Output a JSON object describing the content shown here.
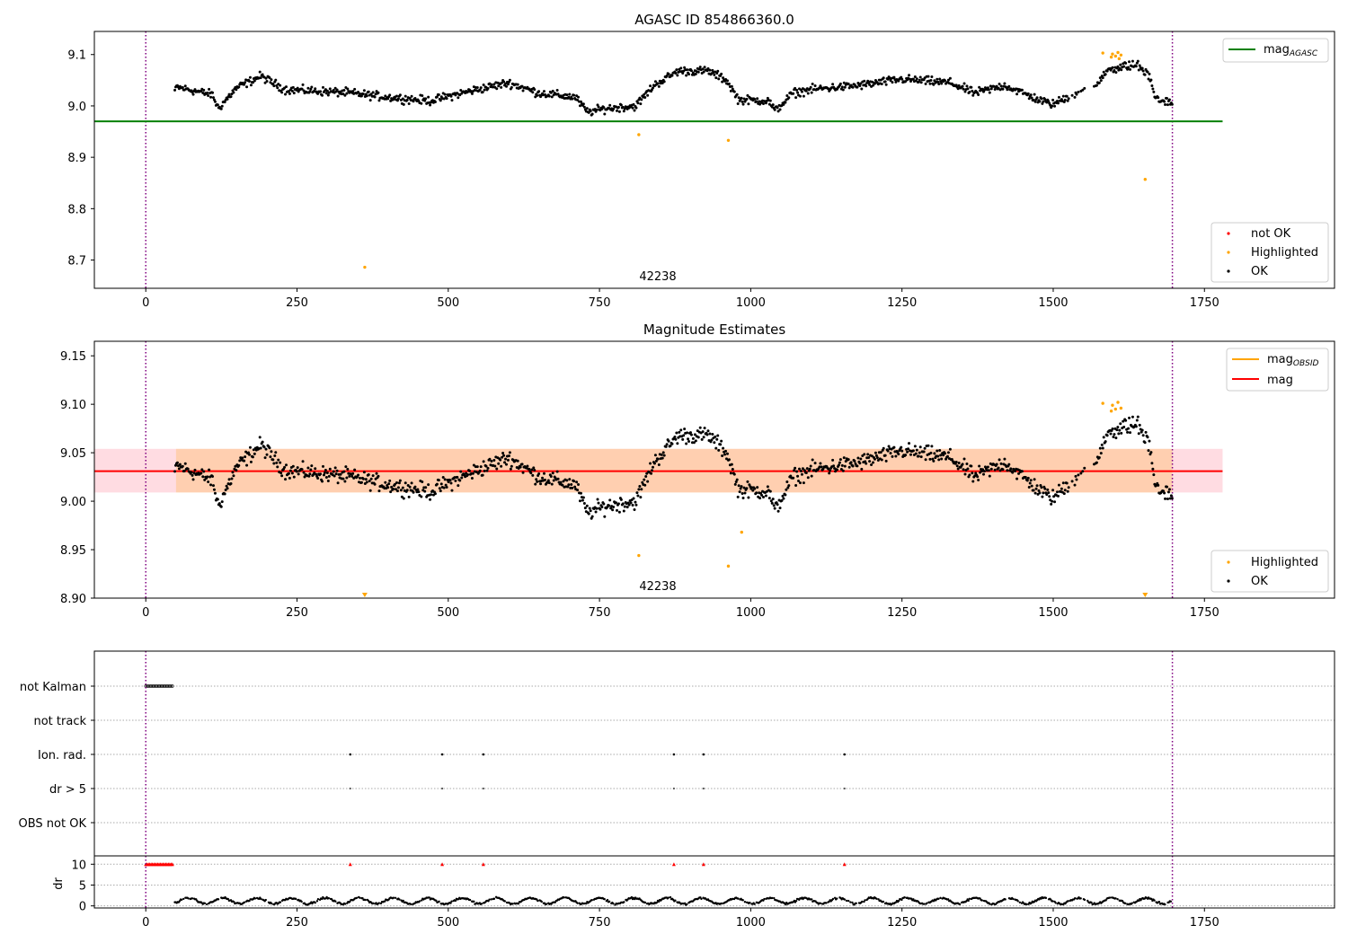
{
  "chart_data": [
    {
      "type": "scatter",
      "title": "AGASC ID 854866360.0",
      "xlim": [
        -85,
        1965
      ],
      "ylim": [
        8.645,
        9.145
      ],
      "xticks": [
        0,
        250,
        500,
        750,
        1000,
        1250,
        1500,
        1750
      ],
      "yticks": [
        8.7,
        8.8,
        8.9,
        9.0,
        9.1
      ],
      "ytick_labels": [
        "8.7",
        "8.8",
        "8.9",
        "9.0",
        "9.1"
      ],
      "xtick_labels": [
        "0",
        "250",
        "500",
        "750",
        "1000",
        "1250",
        "1500",
        "1750"
      ],
      "vlines": [
        0,
        1697
      ],
      "obsid_label": {
        "text": "42238",
        "x": 848
      },
      "hlines": [
        {
          "name": "mag_AGASC",
          "y": 8.97,
          "x0": -85,
          "x1": 1780,
          "color": "#008000"
        }
      ],
      "legend_lines": [
        {
          "label": "mag",
          "sub": "AGASC",
          "color": "#008000"
        }
      ],
      "legend_points": [
        {
          "label": "not OK",
          "color": "#ff0000"
        },
        {
          "label": "Highlighted",
          "color": "#ffa500"
        },
        {
          "label": "OK",
          "color": "#000000"
        }
      ],
      "highlighted": [
        [
          362,
          8.686
        ],
        [
          815,
          8.944
        ],
        [
          963,
          8.933
        ],
        [
          1652,
          8.857
        ],
        [
          1582,
          9.103
        ],
        [
          1598,
          9.101
        ],
        [
          1603,
          9.097
        ],
        [
          1607,
          9.104
        ],
        [
          1612,
          9.099
        ],
        [
          1609,
          9.092
        ],
        [
          1596,
          9.095
        ]
      ]
    },
    {
      "type": "scatter",
      "title": "Magnitude Estimates",
      "xlim": [
        -85,
        1965
      ],
      "ylim": [
        8.9,
        9.165
      ],
      "xticks": [
        0,
        250,
        500,
        750,
        1000,
        1250,
        1500,
        1750
      ],
      "yticks": [
        8.9,
        8.95,
        9.0,
        9.05,
        9.1,
        9.15
      ],
      "ytick_labels": [
        "8.90",
        "8.95",
        "9.00",
        "9.05",
        "9.10",
        "9.15"
      ],
      "xtick_labels": [
        "0",
        "250",
        "500",
        "750",
        "1000",
        "1250",
        "1500",
        "1750"
      ],
      "vlines": [
        0,
        1697
      ],
      "obsid_label": {
        "text": "42238",
        "x": 848
      },
      "hlines": [
        {
          "name": "mag",
          "y": 9.031,
          "x0": -85,
          "x1": 1780,
          "color": "#ff0000"
        }
      ],
      "bands": [
        {
          "y0": 9.009,
          "y1": 9.054,
          "x0": -85,
          "x1": 1780,
          "color": "#ffc0cb",
          "opacity": 0.55
        },
        {
          "y0": 9.009,
          "y1": 9.054,
          "x0": 50,
          "x1": 1697,
          "color": "#ffa500",
          "opacity": 0.22
        }
      ],
      "legend_lines": [
        {
          "label": "mag",
          "sub": "OBSID",
          "color": "#ffa500"
        },
        {
          "label": "mag",
          "sub": "",
          "color": "#ff0000"
        }
      ],
      "legend_points": [
        {
          "label": "Highlighted",
          "color": "#ffa500"
        },
        {
          "label": "OK",
          "color": "#000000"
        }
      ],
      "highlighted": [
        [
          815,
          8.944
        ],
        [
          963,
          8.933
        ],
        [
          985,
          8.968
        ],
        [
          1582,
          9.101
        ],
        [
          1598,
          9.099
        ],
        [
          1603,
          9.095
        ],
        [
          1607,
          9.102
        ],
        [
          1612,
          9.096
        ],
        [
          1596,
          9.093
        ]
      ],
      "clipped_markers": [
        362,
        1652
      ]
    },
    {
      "type": "scatter",
      "title": "",
      "xlim": [
        -85,
        1965
      ],
      "xticks": [
        0,
        250,
        500,
        750,
        1000,
        1250,
        1500,
        1750
      ],
      "xtick_labels": [
        "0",
        "250",
        "500",
        "750",
        "1000",
        "1250",
        "1500",
        "1750"
      ],
      "vlines": [
        0,
        1697
      ],
      "flag_rows": [
        "not Kalman",
        "not track",
        "Ion. rad.",
        "dr > 5",
        "OBS not OK"
      ],
      "not_kalman_range": [
        0,
        45
      ],
      "ion_rad_x": [
        338,
        490,
        558,
        873,
        922,
        1155
      ],
      "dr_gt5_x": [
        338,
        490,
        558,
        873,
        922,
        1155
      ],
      "dr_ylabel": "dr",
      "dr_yticks": [
        0,
        5,
        10
      ],
      "dr_ylim": [
        -0.5,
        12
      ],
      "dr_capped_x": [
        338,
        490,
        558,
        873,
        922,
        1155
      ],
      "dr_capped_range": [
        0,
        45
      ],
      "dr_capped_value": 10
    }
  ]
}
